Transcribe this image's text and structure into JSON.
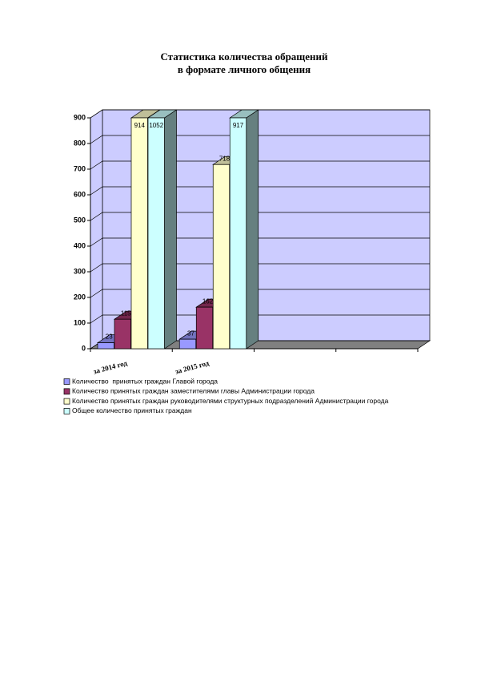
{
  "chart_data": {
    "type": "bar3d",
    "title": "Статистика количества обращений",
    "subtitle": "в формате личного общения",
    "categories": [
      "за 2014 год",
      "за 2015 год",
      null,
      null
    ],
    "series": [
      {
        "name": "Количество  принятых граждан Главой города",
        "color": "#9999ff",
        "values": [
          23,
          37,
          null,
          null
        ]
      },
      {
        "name": "Количество принятых граждан заместителями главы Администрации города",
        "color": "#993366",
        "values": [
          115,
          162,
          null,
          null
        ]
      },
      {
        "name": "Количество принятых граждан руководителями структурных подразделений Администрации города",
        "color": "#ffffcc",
        "values": [
          914,
          718,
          null,
          null
        ]
      },
      {
        "name": "Общее количество принятых граждан",
        "color": "#ccffff",
        "values": [
          1052,
          917,
          null,
          null
        ]
      }
    ],
    "ylim": [
      0,
      900
    ],
    "yticks": [
      0,
      100,
      200,
      300,
      400,
      500,
      600,
      700,
      800,
      900
    ],
    "grid": true
  }
}
